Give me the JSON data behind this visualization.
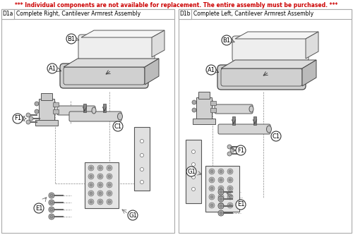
{
  "warning_text": "*** Individual components are not available for replacement. The entire assembly must be purchased. ***",
  "warning_color": "#cc0000",
  "bg": "#ffffff",
  "panel_bg": "#ffffff",
  "panel_border": "#999999",
  "line_color": "#555555",
  "light_gray": "#e8e8e8",
  "mid_gray": "#c8c8c8",
  "dark_gray": "#888888",
  "left_id": "D1a",
  "left_title": "Complete Right, Cantilever Armrest Assembly",
  "right_id": "D1b",
  "right_title": "Complete Left, Cantilever Armrest Assembly"
}
